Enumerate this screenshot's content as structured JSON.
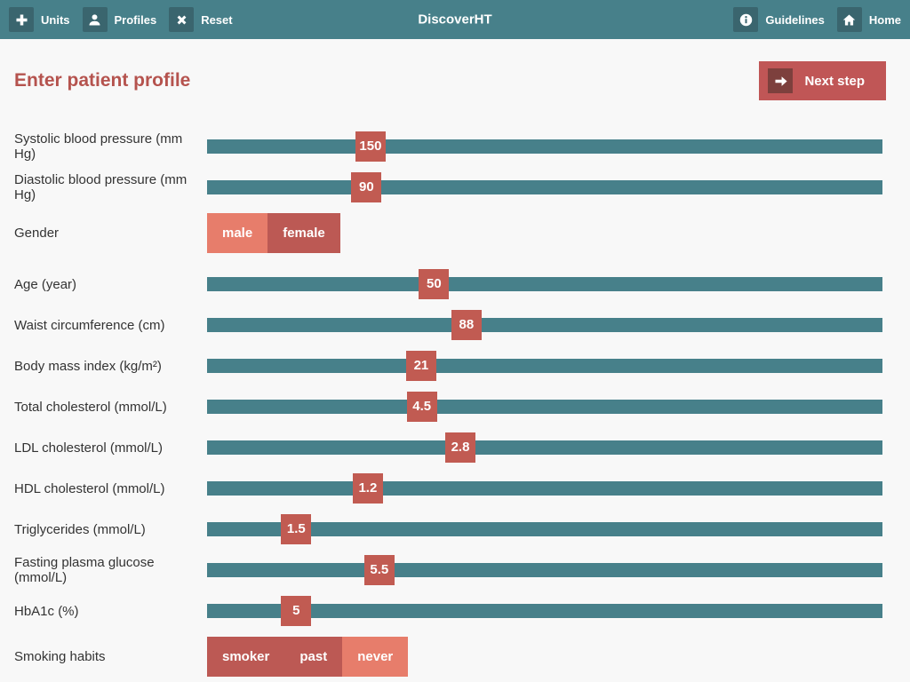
{
  "navbar": {
    "title": "DiscoverHT",
    "left_items": [
      {
        "label": "Units",
        "icon": "plus-icon"
      },
      {
        "label": "Profiles",
        "icon": "person-icon"
      },
      {
        "label": "Reset",
        "icon": "x-icon"
      }
    ],
    "right_items": [
      {
        "label": "Guidelines",
        "icon": "info-icon"
      },
      {
        "label": "Home",
        "icon": "home-icon"
      }
    ]
  },
  "page": {
    "title": "Enter patient profile",
    "next_step_label": "Next step",
    "next_step_icon": "arrow-right-icon"
  },
  "colors": {
    "navbar_teal": "#47808a",
    "icon_square_teal": "#3a656e",
    "slider_track_teal": "#47808a",
    "slider_handle_red": "#c15b52",
    "next_step_red": "#c05656",
    "next_step_icon_red": "#7d403d",
    "toggle_active_salmon": "#e77d6b",
    "toggle_inactive_red": "#bc5954",
    "heading_red": "#b5534e",
    "page_background": "#f8f8f8",
    "label_text": "#333333"
  },
  "rows": [
    {
      "type": "slider",
      "name": "systolic",
      "label": "Systolic blood pressure (mm Hg)",
      "value": "150",
      "percent": 24.2
    },
    {
      "type": "slider",
      "name": "diastolic",
      "label": "Diastolic blood pressure (mm Hg)",
      "value": "90",
      "percent": 23.6
    },
    {
      "type": "toggle",
      "name": "gender",
      "label": "Gender",
      "options": [
        {
          "label": "male",
          "active": true
        },
        {
          "label": "female",
          "active": false
        }
      ]
    },
    {
      "type": "slider",
      "name": "age",
      "label": "Age (year)",
      "value": "50",
      "percent": 33.6
    },
    {
      "type": "slider",
      "name": "waist",
      "label": "Waist circumference (cm)",
      "value": "88",
      "percent": 38.4
    },
    {
      "type": "slider",
      "name": "bmi",
      "label": "Body mass index (kg/m²)",
      "value": "21",
      "percent": 31.7
    },
    {
      "type": "slider",
      "name": "total-cholesterol",
      "label": "Total cholesterol (mmol/L)",
      "value": "4.5",
      "percent": 31.8
    },
    {
      "type": "slider",
      "name": "ldl-cholesterol",
      "label": "LDL cholesterol (mmol/L)",
      "value": "2.8",
      "percent": 37.5
    },
    {
      "type": "slider",
      "name": "hdl-cholesterol",
      "label": "HDL cholesterol (mmol/L)",
      "value": "1.2",
      "percent": 23.8
    },
    {
      "type": "slider",
      "name": "triglycerides",
      "label": "Triglycerides (mmol/L)",
      "value": "1.5",
      "percent": 13.2
    },
    {
      "type": "slider",
      "name": "fasting-glucose",
      "label": "Fasting plasma glucose (mmol/L)",
      "value": "5.5",
      "percent": 25.5
    },
    {
      "type": "slider",
      "name": "hba1c",
      "label": "HbA1c (%)",
      "value": "5",
      "percent": 13.2
    },
    {
      "type": "toggle",
      "name": "smoking",
      "label": "Smoking habits",
      "options": [
        {
          "label": "smoker",
          "active": false
        },
        {
          "label": "past",
          "active": false
        },
        {
          "label": "never",
          "active": true
        }
      ]
    }
  ]
}
